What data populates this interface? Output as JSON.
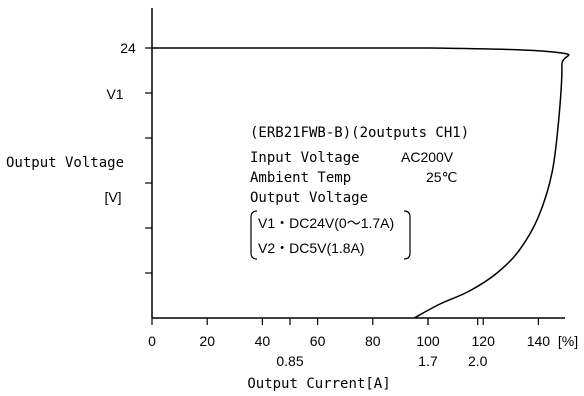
{
  "chart_data": {
    "type": "line",
    "xlabel": "Output Current[A]",
    "x_unit": "[%]",
    "ylabel": "Output Voltage",
    "y_unit": "[V]",
    "y_series_label": "V1",
    "xlim": [
      0,
      150
    ],
    "ylim": [
      0,
      24
    ],
    "x_ticks": [
      0,
      20,
      40,
      60,
      80,
      100,
      120,
      140
    ],
    "x_tick_labels": [
      "0",
      "20",
      "40",
      "60",
      "80",
      "100",
      "120",
      "140"
    ],
    "x_current_ticks": [
      {
        "x": 50,
        "label": "0.85"
      },
      {
        "x": 100,
        "label": "1.7"
      },
      {
        "x": 118,
        "label": "2.0"
      }
    ],
    "y_minor_ticks": [
      0,
      4,
      8,
      12,
      16,
      20,
      24
    ],
    "y_labeled_ticks": [
      {
        "y": 24,
        "label": "24"
      }
    ],
    "grid": false,
    "series": [
      {
        "x": [
          0,
          100,
          147,
          148.5,
          147.5,
          145,
          140,
          133,
          125,
          115,
          104,
          95
        ],
        "y": [
          24,
          24,
          23.6,
          22.5,
          18,
          13,
          9,
          6,
          4,
          2.4,
          1.2,
          0
        ]
      }
    ]
  },
  "annotation": {
    "model": "(ERB21FWB-B)(2outputs CH1)",
    "input_voltage_label": "Input Voltage",
    "input_voltage_value": "AC200V",
    "ambient_temp_label": "Ambient Temp",
    "ambient_temp_value": "25℃",
    "output_voltage_label": "Output Voltage",
    "v1_spec": "V1・DC24V(0～1.7A)",
    "v2_spec": "V2・DC5V(1.8A)"
  }
}
